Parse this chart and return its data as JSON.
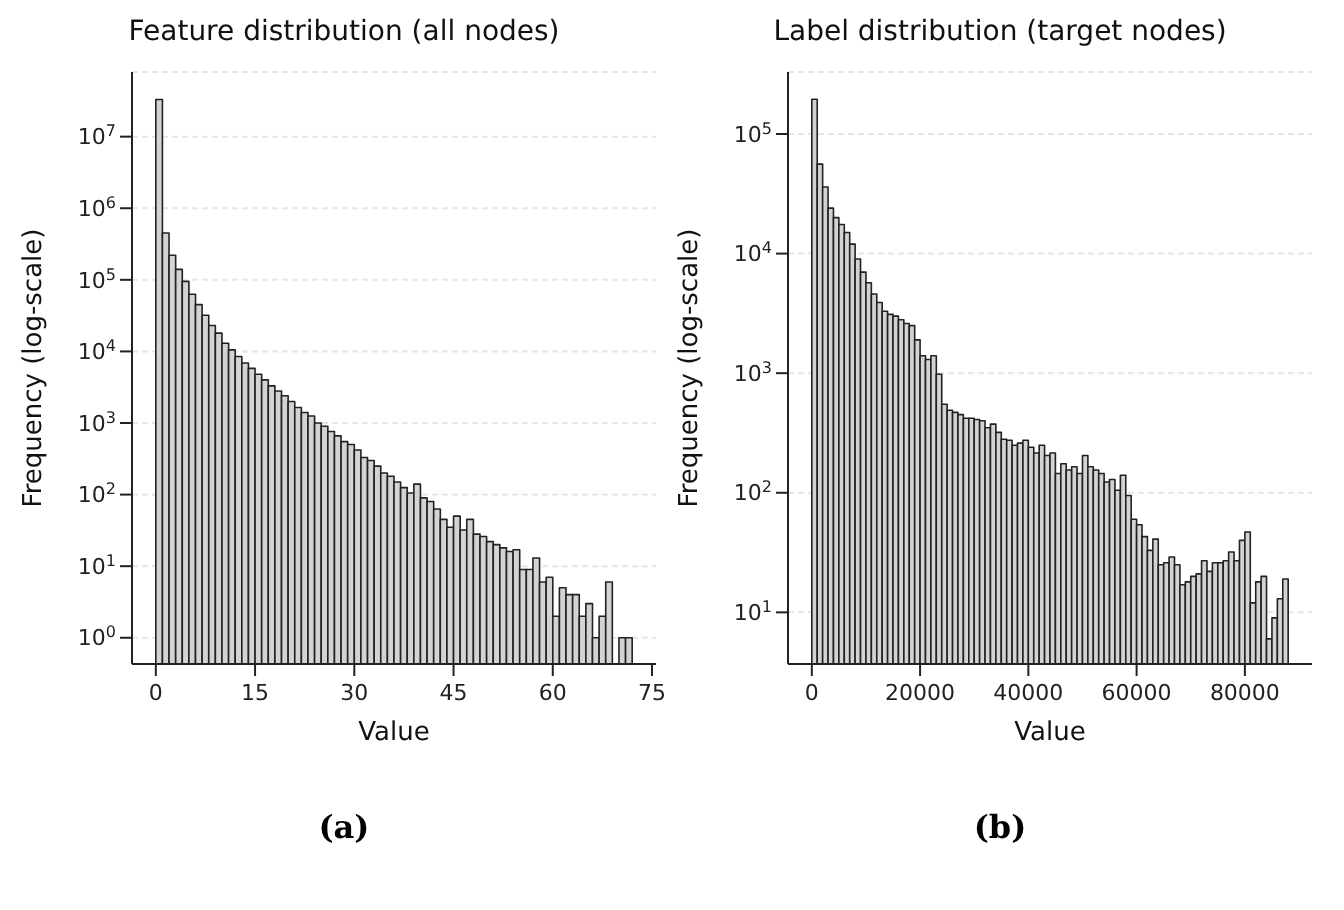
{
  "chart_data": [
    {
      "type": "histogram",
      "title": "Feature distribution (all nodes)",
      "xlabel": "Value",
      "ylabel": "Frequency (log-scale)",
      "annotations": [
        "(a)"
      ],
      "color": "#d3d3d3",
      "log": "y",
      "grid": "y",
      "bins": [
        0,
        1,
        2,
        3,
        4,
        5,
        6,
        7,
        8,
        9,
        10,
        11,
        12,
        13,
        14,
        15,
        16,
        17,
        18,
        19,
        20,
        21,
        22,
        23,
        24,
        25,
        26,
        27,
        28,
        29,
        30,
        31,
        32,
        33,
        34,
        35,
        36,
        37,
        38,
        39,
        40,
        41,
        42,
        43,
        44,
        45,
        46,
        47,
        48,
        49,
        50,
        51,
        52,
        53,
        54,
        55,
        56,
        57,
        58,
        59,
        60,
        61,
        62,
        63,
        64,
        65,
        66,
        67,
        68,
        69,
        70,
        71,
        72
      ],
      "values": [
        33000000,
        450000,
        220000,
        140000,
        95000,
        63000,
        45000,
        32000,
        23000,
        18000,
        13000,
        10500,
        8500,
        6900,
        5800,
        4800,
        4000,
        3300,
        2800,
        2400,
        2000,
        1650,
        1400,
        1250,
        1000,
        900,
        760,
        660,
        550,
        500,
        420,
        330,
        300,
        250,
        200,
        180,
        150,
        125,
        105,
        140,
        90,
        80,
        63,
        45,
        35,
        50,
        32,
        45,
        28,
        26,
        22,
        20,
        18,
        16,
        17,
        9,
        9,
        13,
        6,
        7,
        2,
        5,
        4,
        4,
        2,
        3,
        1,
        2,
        6,
        null,
        1,
        1
      ],
      "xlim": [
        -3.6,
        75.6
      ],
      "xticks": [
        0,
        15,
        30,
        45,
        60,
        75
      ],
      "ylim": [
        0.43,
        80000000
      ],
      "yticks": [
        {
          "value": 1,
          "label": "10$^{0}$"
        },
        {
          "value": 10,
          "label": "10$^{1}$"
        },
        {
          "value": 100,
          "label": "10$^{2}$"
        },
        {
          "value": 1000,
          "label": "10$^{3}$"
        },
        {
          "value": 10000,
          "label": "10$^{4}$"
        },
        {
          "value": 100000,
          "label": "10$^{5}$"
        },
        {
          "value": 1000000,
          "label": "10$^{6}$"
        },
        {
          "value": 10000000,
          "label": "10$^{7}$"
        }
      ]
    },
    {
      "type": "histogram",
      "title": "Label distribution (target nodes)",
      "xlabel": "Value",
      "ylabel": "Frequency (log-scale)",
      "annotations": [
        "(b)"
      ],
      "color": "#d3d3d3",
      "log": "y",
      "grid": "y",
      "bins": [
        0,
        1000,
        2000,
        3000,
        4000,
        5000,
        6000,
        7000,
        8000,
        9000,
        10000,
        11000,
        12000,
        13000,
        14000,
        15000,
        16000,
        17000,
        18000,
        19000,
        20000,
        21000,
        22000,
        23000,
        24000,
        25000,
        26000,
        27000,
        28000,
        29000,
        30000,
        31000,
        32000,
        33000,
        34000,
        35000,
        36000,
        37000,
        38000,
        39000,
        40000,
        41000,
        42000,
        43000,
        44000,
        45000,
        46000,
        47000,
        48000,
        49000,
        50000,
        51000,
        52000,
        53000,
        54000,
        55000,
        56000,
        57000,
        58000,
        59000,
        60000,
        61000,
        62000,
        63000,
        64000,
        65000,
        66000,
        67000,
        68000,
        69000,
        70000,
        71000,
        72000,
        73000,
        74000,
        75000,
        76000,
        77000,
        78000,
        79000,
        80000,
        81000,
        82000,
        83000,
        84000,
        85000,
        86000,
        87000,
        88000
      ],
      "values": [
        195000,
        56000,
        36000,
        24000,
        20000,
        17500,
        15000,
        12000,
        9000,
        7000,
        5700,
        4600,
        3900,
        3300,
        3100,
        3000,
        2800,
        2600,
        2500,
        1900,
        1400,
        1300,
        1400,
        980,
        550,
        490,
        470,
        450,
        420,
        420,
        410,
        400,
        350,
        375,
        320,
        280,
        275,
        250,
        260,
        275,
        240,
        215,
        250,
        205,
        215,
        145,
        175,
        155,
        165,
        145,
        205,
        165,
        155,
        145,
        123,
        129,
        105,
        140,
        95,
        60,
        54,
        43,
        33,
        41,
        25,
        26,
        29,
        25,
        17,
        18,
        20,
        21,
        27,
        22,
        26,
        26,
        27,
        32,
        27,
        40,
        47,
        12,
        18,
        20,
        6,
        9,
        13,
        19
      ],
      "xlim": [
        -4400,
        92400
      ],
      "xticks": [
        0,
        20000,
        40000,
        60000,
        80000
      ],
      "ylim": [
        3.7,
        330000
      ],
      "yticks": [
        {
          "value": 10,
          "label": "10$^{1}$"
        },
        {
          "value": 100,
          "label": "10$^{2}$"
        },
        {
          "value": 1000,
          "label": "10$^{3}$"
        },
        {
          "value": 10000,
          "label": "10$^{4}$"
        },
        {
          "value": 100000,
          "label": "10$^{5}$"
        }
      ]
    }
  ]
}
